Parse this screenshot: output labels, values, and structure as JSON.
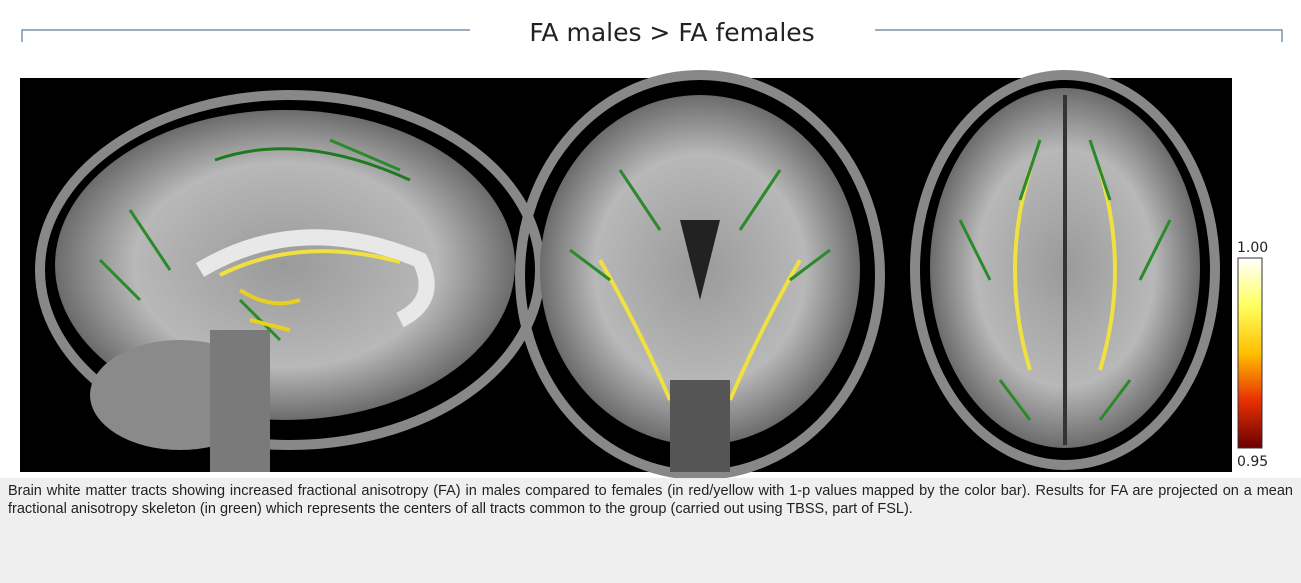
{
  "figure": {
    "title": "FA males > FA females",
    "colorbar": {
      "ticks": [
        {
          "value": 1,
          "label": "1.00"
        },
        {
          "value": 0.95,
          "label": "0.95"
        }
      ]
    },
    "caption": "Brain white matter tracts showing increased fractional anisotropy (FA) in males compared to females (in red/yellow with 1-p values mapped by the color bar). Results for FA are projected on a mean fractional anisotropy skeleton (in green) which represents the centers of all tracts common to the group (carried out using TBSS, part of FSL)."
  }
}
